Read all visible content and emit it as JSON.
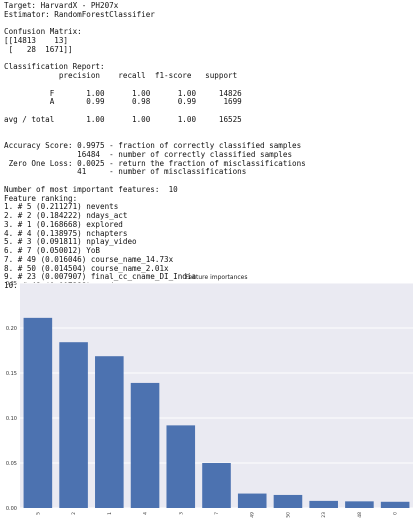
{
  "report_lines": [
    "Target: HarvardX - PH207x",
    "Estimator: RandomForestClassifier",
    "",
    "Confusion Matrix:",
    "[[14813    13]",
    " [   28  1671]]",
    "",
    "Classification Report:",
    "            precision    recall  f1-score   support",
    "",
    "          F       1.00      1.00      1.00     14826",
    "          A       0.99      0.98      0.99      1699",
    "",
    "avg / total       1.00      1.00      1.00     16525",
    "",
    "",
    "Accuracy Score: 0.9975 - fraction of correctly classified samples",
    "                16484  - number of correctly classified samples",
    " Zero One Loss: 0.0025 - return the fraction of misclassifications",
    "                41     - number of misclassifications",
    "",
    "Number of most important features:  10",
    "Feature ranking:",
    "1. # 5 (0.211271) nevents",
    "2. # 2 (0.184222) ndays_act",
    "3. # 1 (0.168668) explored",
    "4. # 4 (0.138975) nchapters",
    "5. # 3 (0.091811) nplay_video",
    "6. # 7 (0.050012) YoB",
    "7. # 49 (0.016046) course_name_14.73x",
    "8. # 50 (0.014504) course_name_2.01x",
    "9. # 23 (0.007907) final_cc_cname_DI_India",
    "10. # 48 (0.007388) gender_m"
  ],
  "chart_data": {
    "type": "bar",
    "title": "Feature importances",
    "categories": [
      "5",
      "2",
      "1",
      "4",
      "3",
      "7",
      "49",
      "50",
      "23",
      "48",
      "0"
    ],
    "values": [
      0.211271,
      0.184222,
      0.168668,
      0.138975,
      0.091811,
      0.050012,
      0.016046,
      0.014504,
      0.007907,
      0.007388,
      0.0069
    ],
    "ylim": [
      0,
      0.25
    ],
    "yticks": [
      0.0,
      0.05,
      0.1,
      0.15,
      0.2,
      0.25
    ],
    "ytick_labels": [
      "0.00",
      "0.05",
      "0.10",
      "0.15",
      "0.20",
      "0.25"
    ],
    "bar_color": "#4c72b0",
    "plot_background": "#eaeaf2",
    "grid_color": "#ffffff",
    "grid": true,
    "xtick_rotation": "vertical"
  }
}
